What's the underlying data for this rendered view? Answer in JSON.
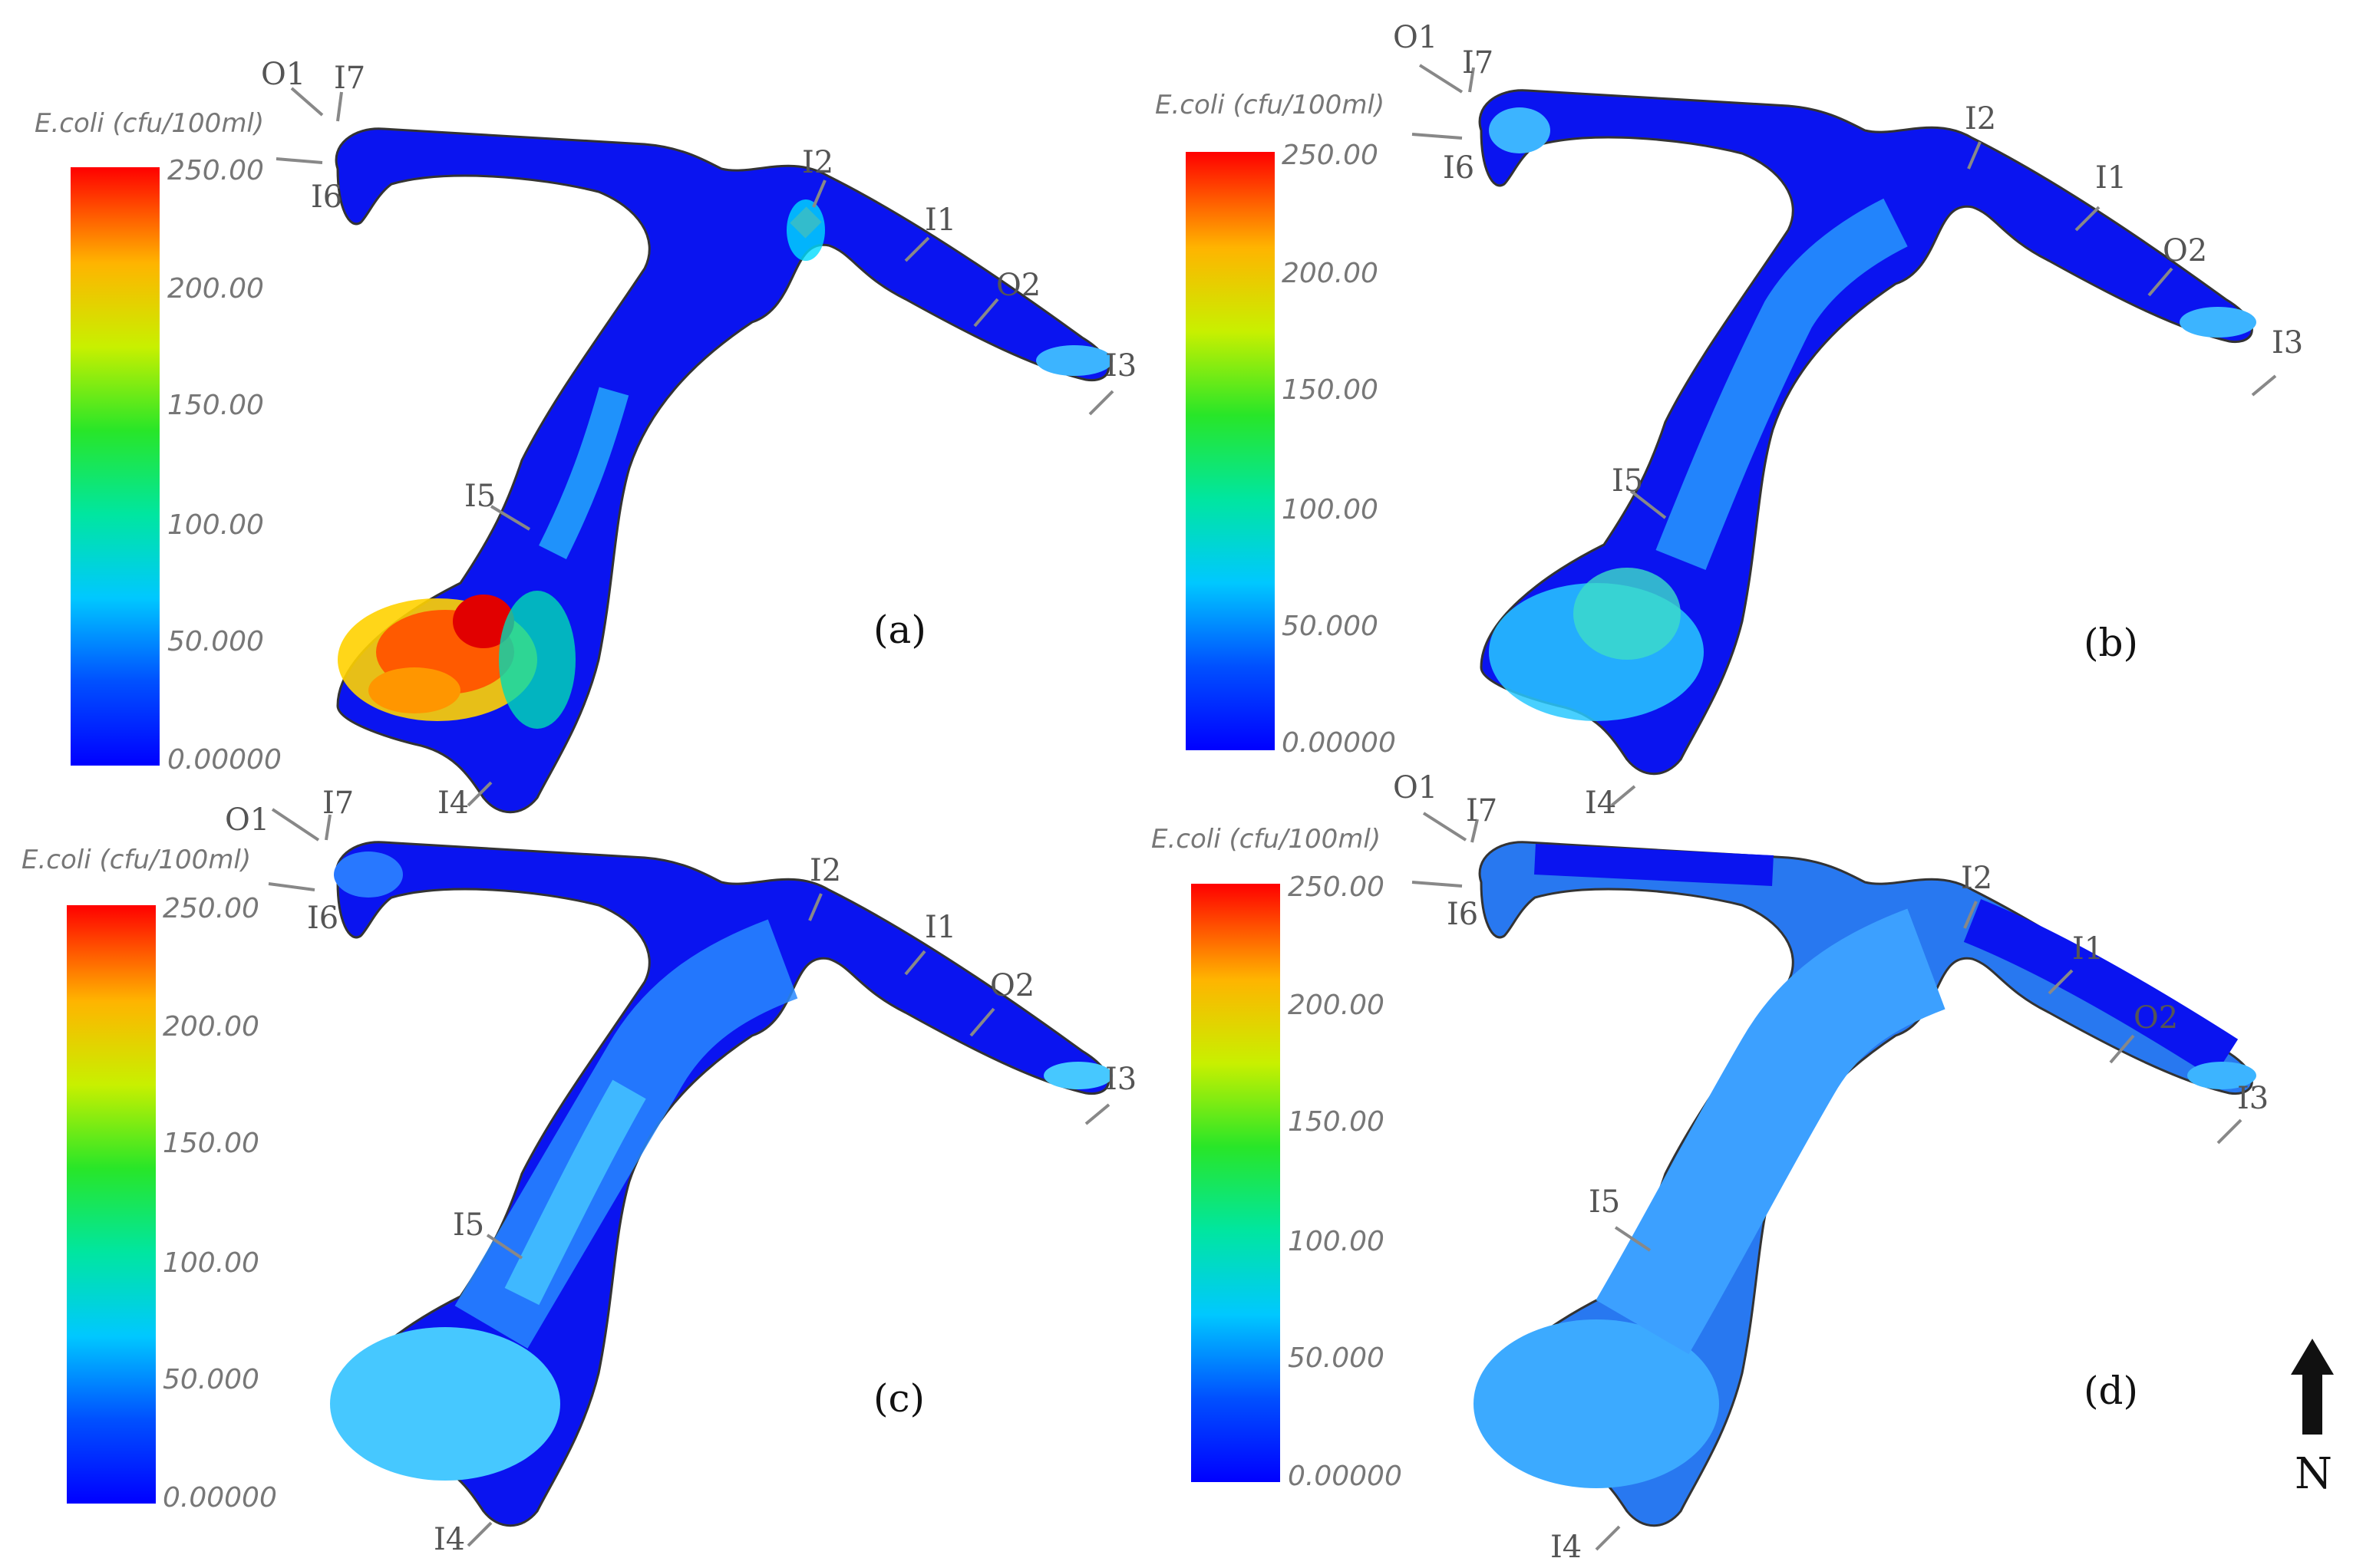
{
  "legend": {
    "title": "E.coli (cfu/100ml)",
    "ticks": [
      "250.00",
      "200.00",
      "150.00",
      "100.00",
      "50.000",
      "0.00000"
    ],
    "colors": [
      "#0000ff",
      "#0078ff",
      "#00d2ff",
      "#00e650",
      "#8ce600",
      "#ffff00",
      "#ff9600",
      "#ff0000"
    ]
  },
  "north_label": "N",
  "point_labels": [
    "O1",
    "I7",
    "I6",
    "I2",
    "I1",
    "O2",
    "I3",
    "I5",
    "I4"
  ],
  "panels": [
    {
      "id": "a",
      "label": "(a)"
    },
    {
      "id": "b",
      "label": "(b)"
    },
    {
      "id": "c",
      "label": "(c)"
    },
    {
      "id": "d",
      "label": "(d)"
    }
  ],
  "styles": {
    "water_deep": "#0a14f0",
    "water_light": "#3cb4ff",
    "arrow_gray": "#888888"
  }
}
